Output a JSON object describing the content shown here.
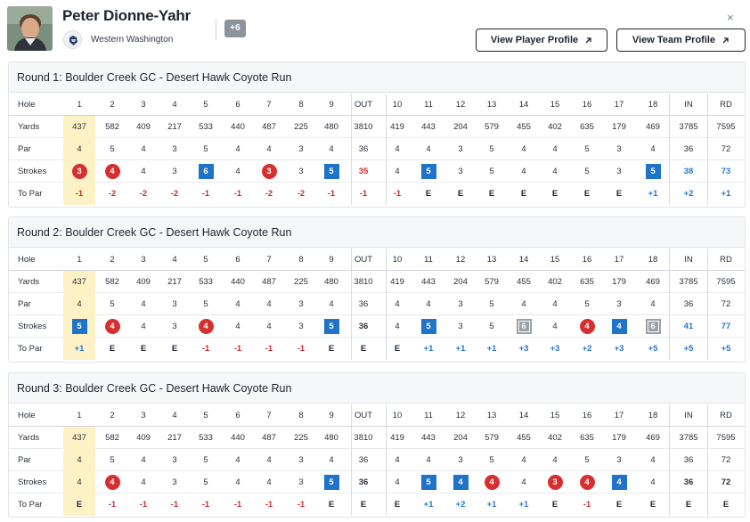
{
  "header": {
    "player_name": "Peter Dionne-Yahr",
    "team_name": "Western Washington",
    "more_count": "+6",
    "view_player_label": "View Player Profile",
    "view_team_label": "View Team Profile",
    "close_label": "×"
  },
  "labels": {
    "hole": "Hole",
    "yards": "Yards",
    "par": "Par",
    "strokes": "Strokes",
    "to_par": "To Par"
  },
  "holes": [
    "1",
    "2",
    "3",
    "4",
    "5",
    "6",
    "7",
    "8",
    "9",
    "OUT",
    "10",
    "11",
    "12",
    "13",
    "14",
    "15",
    "16",
    "17",
    "18",
    "IN",
    "RD"
  ],
  "yards": [
    "437",
    "582",
    "409",
    "217",
    "533",
    "440",
    "487",
    "225",
    "480",
    "3810",
    "419",
    "443",
    "204",
    "579",
    "455",
    "402",
    "635",
    "179",
    "469",
    "3785",
    "7595"
  ],
  "par": [
    "4",
    "5",
    "4",
    "3",
    "5",
    "4",
    "4",
    "3",
    "4",
    "36",
    "4",
    "4",
    "3",
    "5",
    "4",
    "4",
    "5",
    "3",
    "4",
    "36",
    "72"
  ],
  "colors": {
    "birdie": "#d62f2f",
    "bogey": "#1f73c9",
    "double_bogey": "#9aa0aa",
    "under_par_text": "#cf2b2f",
    "over_par_text": "#2676c8",
    "highlight": "#fdf2c6"
  },
  "rounds": [
    {
      "title": "Round 1: Boulder Creek GC - Desert Hawk Coyote Run",
      "strokes": [
        "3",
        "4",
        "4",
        "3",
        "6",
        "4",
        "3",
        "3",
        "5",
        "35",
        "4",
        "5",
        "3",
        "5",
        "4",
        "4",
        "5",
        "3",
        "5",
        "38",
        "73"
      ],
      "markers": [
        "birdie",
        "birdie",
        "none",
        "none",
        "bogey",
        "none",
        "birdie",
        "none",
        "bogey",
        "red",
        "none",
        "bogey",
        "none",
        "none",
        "none",
        "none",
        "none",
        "none",
        "bogey",
        "blue",
        "blue"
      ],
      "to_par": [
        "-1",
        "-2",
        "-2",
        "-2",
        "-1",
        "-1",
        "-2",
        "-2",
        "-1",
        "-1",
        "-1",
        "E",
        "E",
        "E",
        "E",
        "E",
        "E",
        "E",
        "+1",
        "+2",
        "+1"
      ]
    },
    {
      "title": "Round 2: Boulder Creek GC - Desert Hawk Coyote Run",
      "strokes": [
        "5",
        "4",
        "4",
        "3",
        "4",
        "4",
        "4",
        "3",
        "5",
        "36",
        "4",
        "5",
        "3",
        "5",
        "6",
        "4",
        "4",
        "4",
        "6",
        "41",
        "77"
      ],
      "markers": [
        "bogey",
        "birdie",
        "none",
        "none",
        "birdie",
        "none",
        "none",
        "none",
        "bogey",
        "bold",
        "none",
        "bogey",
        "none",
        "none",
        "double",
        "none",
        "birdie",
        "bogey",
        "double",
        "blue",
        "blue"
      ],
      "to_par": [
        "+1",
        "E",
        "E",
        "E",
        "-1",
        "-1",
        "-1",
        "-1",
        "E",
        "E",
        "E",
        "+1",
        "+1",
        "+1",
        "+3",
        "+3",
        "+2",
        "+3",
        "+5",
        "+5",
        "+5"
      ]
    },
    {
      "title": "Round 3: Boulder Creek GC - Desert Hawk Coyote Run",
      "strokes": [
        "4",
        "4",
        "4",
        "3",
        "5",
        "4",
        "4",
        "3",
        "5",
        "36",
        "4",
        "5",
        "4",
        "4",
        "4",
        "3",
        "4",
        "4",
        "4",
        "36",
        "72"
      ],
      "markers": [
        "none",
        "birdie",
        "none",
        "none",
        "none",
        "none",
        "none",
        "none",
        "bogey",
        "bold",
        "none",
        "bogey",
        "bogey",
        "birdie",
        "none",
        "birdie",
        "birdie",
        "bogey",
        "none",
        "bold",
        "bold"
      ],
      "to_par": [
        "E",
        "-1",
        "-1",
        "-1",
        "-1",
        "-1",
        "-1",
        "-1",
        "E",
        "E",
        "E",
        "+1",
        "+2",
        "+1",
        "+1",
        "E",
        "-1",
        "E",
        "E",
        "E",
        "E"
      ]
    }
  ]
}
